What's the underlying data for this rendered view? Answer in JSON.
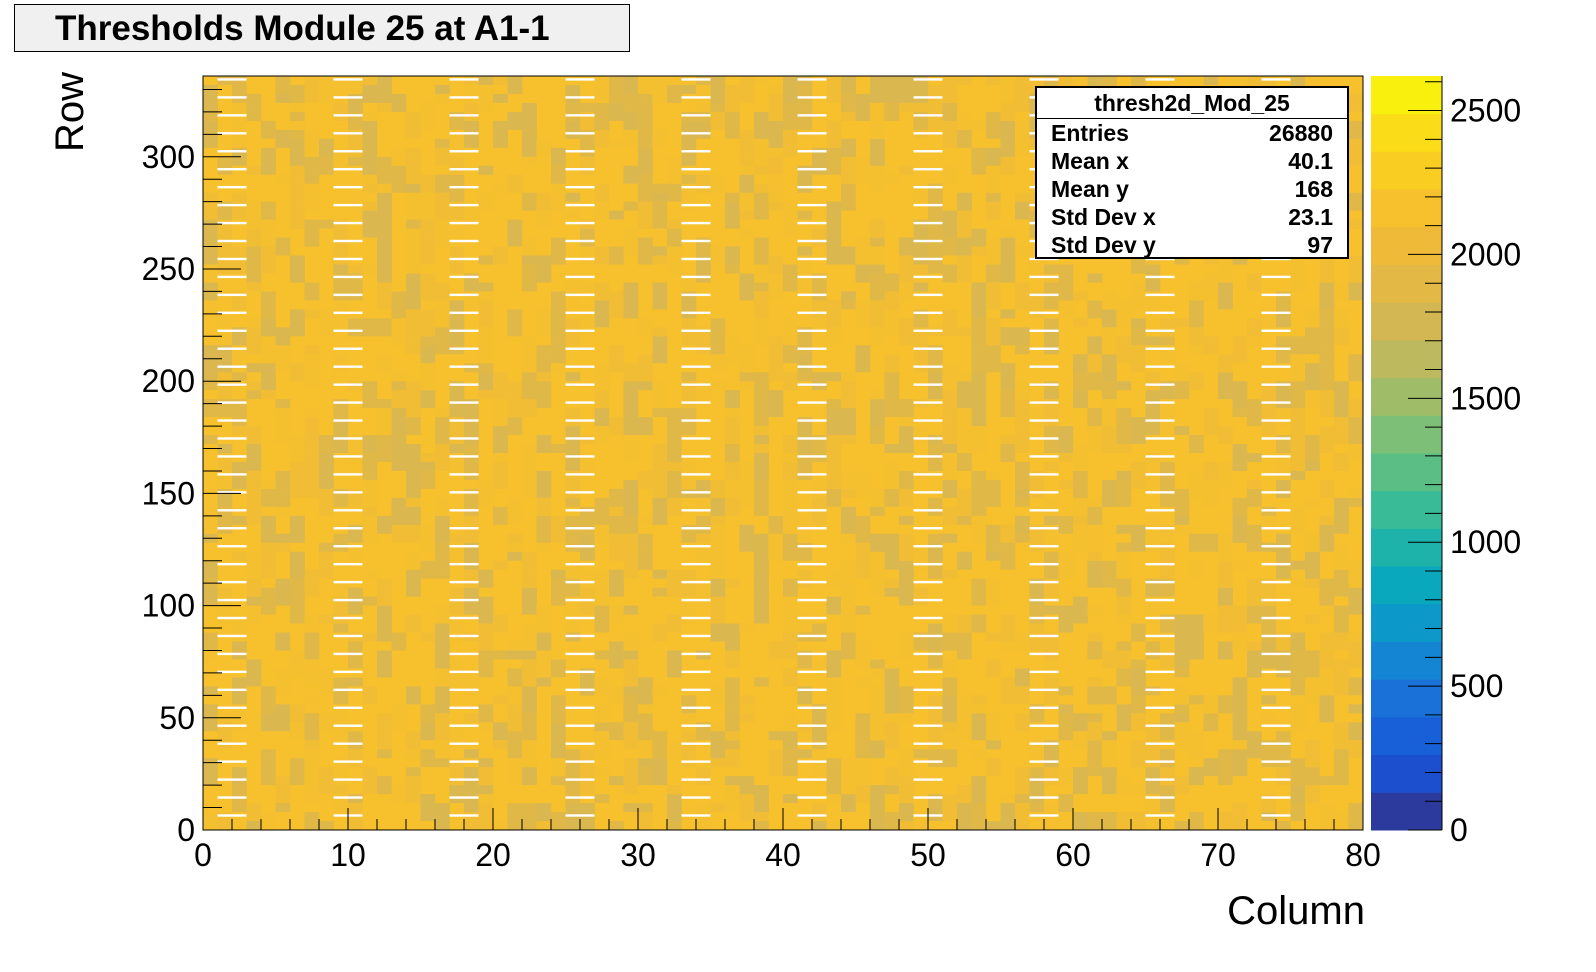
{
  "chart_data": {
    "type": "heatmap",
    "title": "Thresholds Module 25 at A1-1",
    "xlabel": "Column",
    "ylabel": "Row",
    "xlim": [
      0,
      80
    ],
    "ylim": [
      0,
      336
    ],
    "x_ticks": [
      0,
      10,
      20,
      30,
      40,
      50,
      60,
      70,
      80
    ],
    "y_ticks": [
      0,
      50,
      100,
      150,
      200,
      250,
      300
    ],
    "z_range": [
      0,
      2620
    ],
    "z_ticks": [
      0,
      500,
      1000,
      1500,
      2000,
      2500
    ],
    "typical_value": 2150,
    "empty_column_groups_start": [
      1,
      9,
      17,
      25,
      33,
      41,
      49,
      57,
      65,
      73
    ],
    "empty_row_period": 8,
    "palette": [
      "#2b3a9c",
      "#1b4fce",
      "#1760d8",
      "#1a72d8",
      "#1485d2",
      "#0c98c9",
      "#0aa8bd",
      "#1db3ab",
      "#38bb96",
      "#5bbf85",
      "#7dbf76",
      "#9fbd69",
      "#bcb95e",
      "#d2b752",
      "#e3b845",
      "#eeba38",
      "#f6c12c",
      "#f9cd22",
      "#fadc18",
      "#f9f00e"
    ],
    "stats": {
      "name": "thresh2d_Mod_25",
      "rows": [
        {
          "label": "Entries",
          "value": "26880"
        },
        {
          "label": "Mean x",
          "value": "40.1"
        },
        {
          "label": "Mean y",
          "value": "168"
        },
        {
          "label": "Std Dev x",
          "value": "23.1"
        },
        {
          "label": "Std Dev y",
          "value": "97"
        }
      ]
    }
  }
}
